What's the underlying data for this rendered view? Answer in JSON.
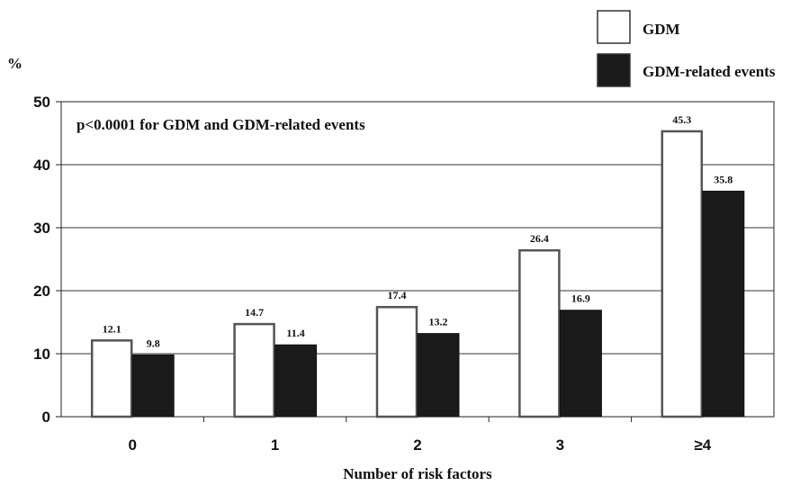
{
  "chart_data": {
    "type": "bar",
    "categories": [
      "0",
      "1",
      "2",
      "3",
      "≥4"
    ],
    "series": [
      {
        "name": "GDM",
        "values": [
          12.1,
          14.7,
          17.4,
          26.4,
          45.3
        ],
        "color": "#ffffff"
      },
      {
        "name": "GDM-related events",
        "values": [
          9.8,
          11.4,
          13.2,
          16.9,
          35.8
        ],
        "color": "#1a1a1a"
      }
    ],
    "data_labels": [
      [
        "12.1",
        "14.7",
        "17.4",
        "26.4",
        "45.3"
      ],
      [
        "9.8",
        "11.4",
        "13.2",
        "16.9",
        "35.8"
      ]
    ],
    "xlabel": "Number of  risk factors",
    "ylabel": "%",
    "ylim": [
      0,
      50
    ],
    "yticks": [
      "0",
      "10",
      "20",
      "30",
      "40",
      "50"
    ],
    "annotation": "p<0.0001 for GDM and GDM-related events",
    "legend_position": "top-right",
    "grid": true
  }
}
